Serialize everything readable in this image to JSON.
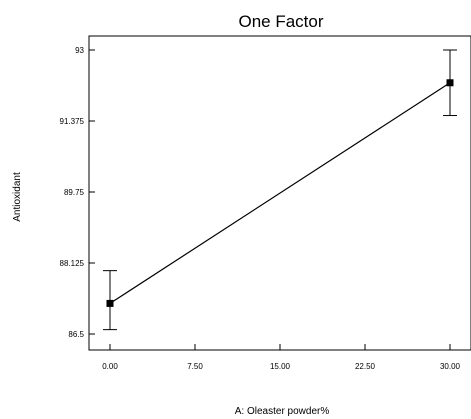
{
  "chart_data": {
    "type": "line",
    "title": "One Factor",
    "xlabel": "A: Oleaster powder%",
    "ylabel": "Antioxidant",
    "xlim": [
      0,
      30
    ],
    "ylim": [
      86.5,
      93
    ],
    "x_ticks": [
      "0.00",
      "7.50",
      "15.00",
      "22.50",
      "30.00"
    ],
    "y_ticks": [
      "86.5",
      "88.125",
      "89.75",
      "91.375",
      "93"
    ],
    "grid": false,
    "series": [
      {
        "x": [
          0,
          30
        ],
        "values": [
          87.2,
          92.25
        ],
        "error_low": [
          86.6,
          91.5
        ],
        "error_high": [
          87.95,
          93.0
        ]
      }
    ],
    "colors": {
      "line": "#000000",
      "marker": "#000000"
    }
  }
}
